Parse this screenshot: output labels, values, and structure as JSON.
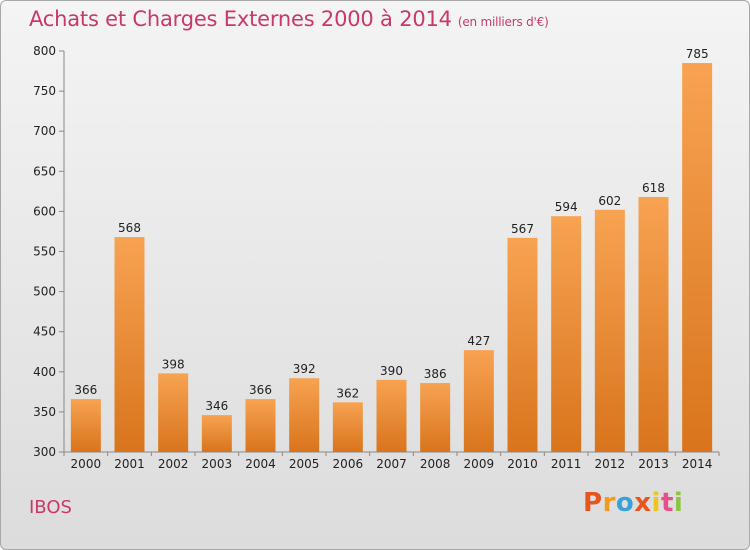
{
  "header": {
    "title": "Achats et Charges Externes 2000 à 2014",
    "subtitle": "(en milliers d'€)"
  },
  "footer": {
    "commune": "IBOS",
    "logo_text": "Proxiti",
    "logo_colors": [
      "#e8541e",
      "#f29a1f",
      "#3aa0d8",
      "#e8541e",
      "#f2c21f",
      "#e84e8a",
      "#8cc63f"
    ]
  },
  "chart_data": {
    "type": "bar",
    "title": "Achats et Charges Externes 2000 à 2014",
    "subtitle": "(en milliers d'€)",
    "xlabel": "",
    "ylabel": "",
    "categories": [
      "2000",
      "2001",
      "2002",
      "2003",
      "2004",
      "2005",
      "2006",
      "2007",
      "2008",
      "2009",
      "2010",
      "2011",
      "2012",
      "2013",
      "2014"
    ],
    "values": [
      366,
      568,
      398,
      346,
      366,
      392,
      362,
      390,
      386,
      427,
      567,
      594,
      602,
      618,
      785
    ],
    "ylim": [
      300,
      800
    ],
    "yticks": [
      300,
      350,
      400,
      450,
      500,
      550,
      600,
      650,
      700,
      750,
      800
    ],
    "grid": false,
    "bar_color_light": "#f7a352",
    "bar_color_dark": "#d9741c"
  }
}
